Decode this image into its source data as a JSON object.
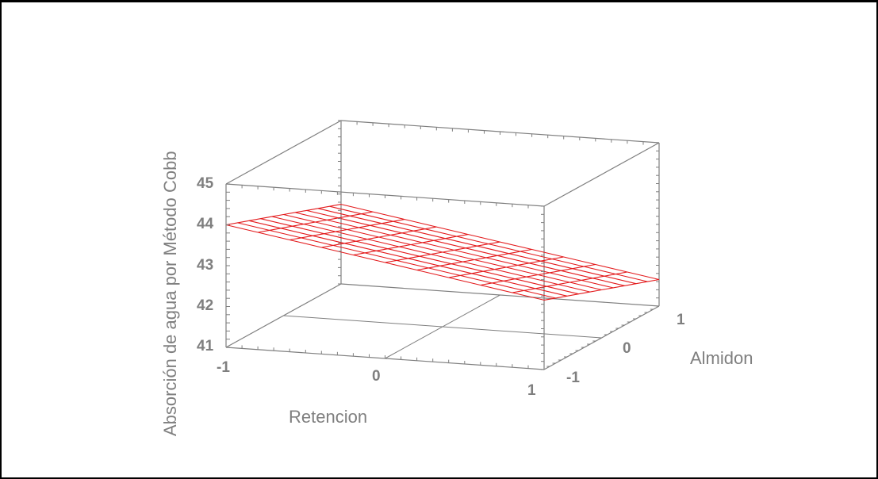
{
  "chart_data": {
    "type": "surface3d",
    "title": "",
    "xlabel": "Retencion",
    "ylabel": "Almidon",
    "zlabel": "Absorción de agua por Método Cobb",
    "x_ticks": [
      "-1",
      "0",
      "1"
    ],
    "y_ticks": [
      "-1",
      "0",
      "1"
    ],
    "z_ticks": [
      "41",
      "42",
      "43",
      "44",
      "45"
    ],
    "xlim": [
      -1,
      1
    ],
    "ylim": [
      -1,
      1
    ],
    "zlim": [
      41,
      45
    ],
    "grid_divisions": 10,
    "surface_corners": {
      "x_-1_y_-1": 44.0,
      "x_1_y_-1": 42.7,
      "x_-1_y_1": 42.95,
      "x_1_y_1": 41.65
    },
    "surface_color": "#e31a1c",
    "axis_color": "#7f7f7f"
  }
}
